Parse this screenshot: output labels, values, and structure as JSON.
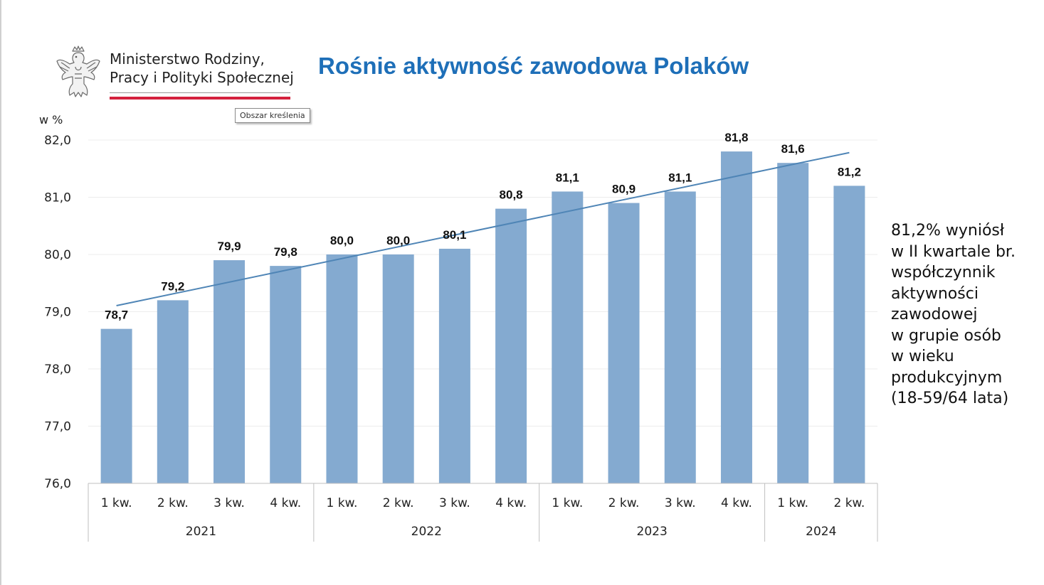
{
  "ministry": {
    "name_lines": [
      "Ministerstwo Rodziny,",
      "Pracy i Polityki Społecznej"
    ]
  },
  "title": "Rośnie aktywność zawodowa Polaków",
  "tooltip": "Obszar kreślenia",
  "side_note_lines": [
    "81,2% wyniósł",
    "w II kwartale br.",
    "współczynnik",
    "aktywności",
    "zawodowej",
    "w grupie osób",
    "w wieku",
    "produkcyjnym",
    "(18-59/64 lata)"
  ],
  "colors": {
    "bar": "#84aad0",
    "trendline": "#4f85b6",
    "title": "#1e6fb8",
    "logo_red": "#d4213d"
  },
  "chart_data": {
    "type": "bar",
    "ylabel": "w %",
    "ylim": [
      76,
      82
    ],
    "yticks": [
      "76,0",
      "77,0",
      "78,0",
      "79,0",
      "80,0",
      "81,0",
      "82,0"
    ],
    "grid": true,
    "categories": [
      "1 kw.",
      "2 kw.",
      "3 kw.",
      "4 kw.",
      "1 kw.",
      "2 kw.",
      "3 kw.",
      "4 kw.",
      "1 kw.",
      "2 kw.",
      "3 kw.",
      "4 kw.",
      "1 kw.",
      "2 kw."
    ],
    "groups": [
      {
        "label": "2021",
        "count": 4
      },
      {
        "label": "2022",
        "count": 4
      },
      {
        "label": "2023",
        "count": 4
      },
      {
        "label": "2024",
        "count": 2
      }
    ],
    "values": [
      78.7,
      79.2,
      79.9,
      79.8,
      80.0,
      80.0,
      80.1,
      80.8,
      81.1,
      80.9,
      81.1,
      81.8,
      81.6,
      81.2
    ],
    "data_labels": [
      "78,7",
      "79,2",
      "79,9",
      "79,8",
      "80,0",
      "80,0",
      "80,1",
      "80,8",
      "81,1",
      "80,9",
      "81,1",
      "81,8",
      "81,6",
      "81,2"
    ],
    "trendline": {
      "type": "linear",
      "shown": true
    }
  }
}
